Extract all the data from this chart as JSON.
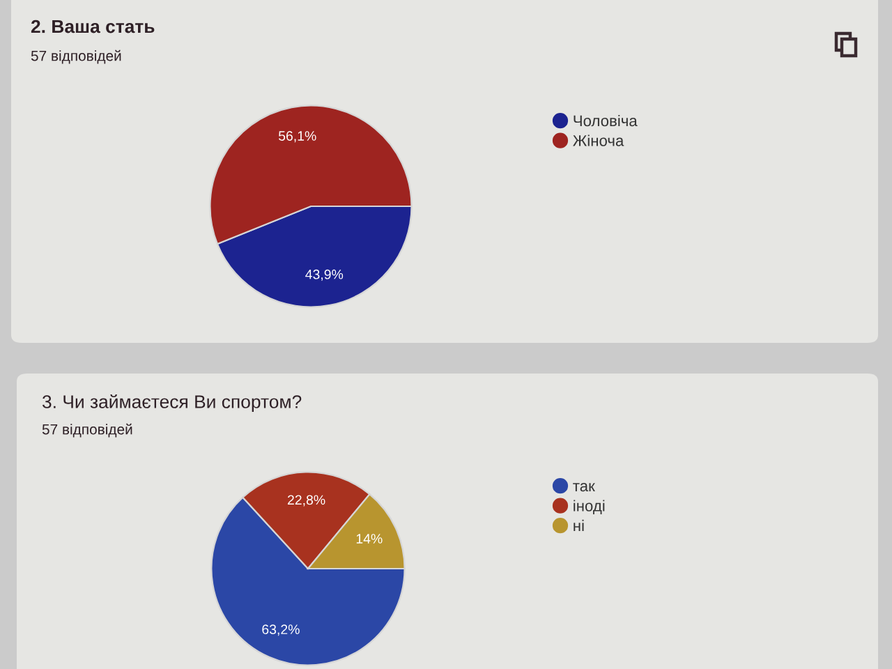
{
  "chart_data": [
    {
      "type": "pie",
      "title": "2. Ваша стать",
      "subtitle": "57 відповідей",
      "categories": [
        "Чоловіча",
        "Жіноча"
      ],
      "values": [
        43.9,
        56.1
      ],
      "colors": [
        "#1c2390",
        "#9e2420"
      ],
      "value_labels": [
        "43,9%",
        "56,1%"
      ],
      "legend": "right"
    },
    {
      "type": "pie",
      "title": "3. Чи займаєтеся Ви спортом?",
      "subtitle": "57 відповідей",
      "categories": [
        "так",
        "іноді",
        "ні"
      ],
      "values": [
        63.2,
        22.8,
        14
      ],
      "colors": [
        "#2b47a6",
        "#a8321f",
        "#b8952f"
      ],
      "value_labels": [
        "63,2%",
        "22,8%",
        "14%"
      ],
      "legend": "right"
    }
  ]
}
